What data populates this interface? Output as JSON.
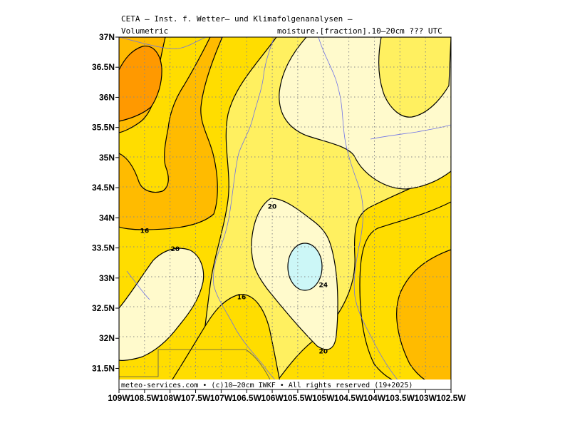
{
  "header": {
    "line1": "CETA — Inst. f. Wetter— und Klimafolgenanalysen —",
    "left2": "Volumetric",
    "right2": "moisture.[fraction].10—20cm ??? UTC"
  },
  "credit": "meteo-services.com • (c)10—20cm IWKF • All rights reserved (19+2025)",
  "chart_data": {
    "type": "heatmap",
    "lon_range": [
      -109,
      -102.5
    ],
    "lat_range": [
      31.15,
      37
    ],
    "lon_ticks": [
      "109W",
      "108.5W",
      "108W",
      "107.5W",
      "107W",
      "106.5W",
      "106W",
      "105.5W",
      "105W",
      "104.5W",
      "104W",
      "103.5W",
      "103W",
      "102.5W"
    ],
    "lat_ticks": [
      "31.5N",
      "32N",
      "32.5N",
      "33N",
      "33.5N",
      "34N",
      "34.5N",
      "35N",
      "35.5N",
      "36N",
      "36.5N",
      "37N"
    ],
    "contour_labels": [
      {
        "text": "20",
        "lon": -106.0,
        "lat": 34.15
      },
      {
        "text": "16",
        "lon": -108.5,
        "lat": 33.75
      },
      {
        "text": "20",
        "lon": -107.9,
        "lat": 33.45
      },
      {
        "text": "16",
        "lon": -106.6,
        "lat": 32.65
      },
      {
        "text": "24",
        "lon": -105.0,
        "lat": 32.85
      },
      {
        "text": "20",
        "lon": -105.0,
        "lat": 31.75
      }
    ],
    "levels": [
      "<12",
      "12-16",
      "16-20",
      "20-24",
      ">24"
    ],
    "colors": {
      "lt12": "#ff9900",
      "12to16": "#ffbb00",
      "16to20": "#ffdd00",
      "20to24": "#fff060",
      "24to28": "#fffacc",
      "gt28": "#ccf7f7"
    },
    "grid": true
  }
}
